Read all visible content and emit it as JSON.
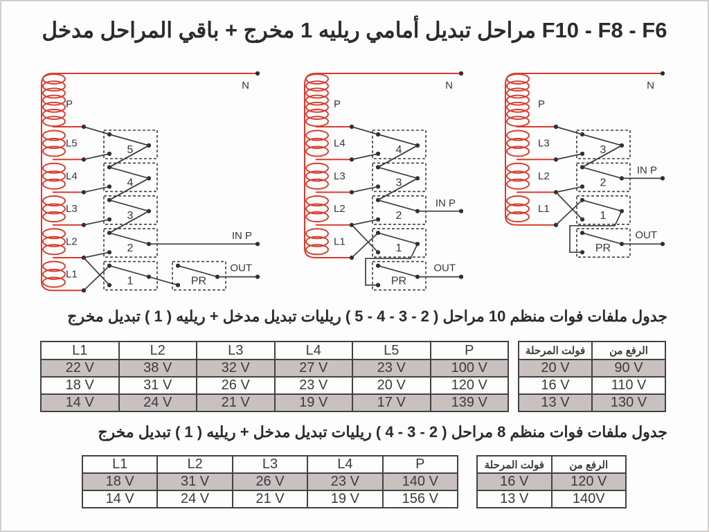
{
  "title": {
    "model": "F10 - F8 - F6",
    "text": "مراحل تبديل أمامي ريليه 1 مخرج + باقي المراحل مدخل"
  },
  "colors": {
    "coil_red": "#da392c",
    "wire": "#3d3d3d",
    "row_shade": "#c9c1bf",
    "table_border": "#424242"
  },
  "circuits": [
    {
      "n_label": "N",
      "coil_label": "P",
      "sections": [
        "L5",
        "L4",
        "L3",
        "L2",
        "L1"
      ],
      "relays": [
        "5",
        "4",
        "3",
        "2",
        "1"
      ],
      "pr_label": "PR",
      "in_label": "IN P",
      "out_label": "OUT"
    },
    {
      "n_label": "N",
      "coil_label": "P",
      "sections": [
        "L4",
        "L3",
        "L2",
        "L1"
      ],
      "relays": [
        "4",
        "3",
        "2",
        "1"
      ],
      "pr_label": "PR",
      "in_label": "IN P",
      "out_label": "OUT"
    },
    {
      "n_label": "N",
      "coil_label": "P",
      "sections": [
        "L3",
        "L2",
        "L1"
      ],
      "relays": [
        "3",
        "2",
        "1"
      ],
      "pr_label": "PR",
      "in_label": "IN P",
      "out_label": "OUT"
    }
  ],
  "table1": {
    "heading": {
      "lead": "جدول ملفات فوات منظم 10 مراحل",
      "range": "( 5 - 4 - 3 - 2 )",
      "mid": "ريليات تبديل مدخل + ريليه",
      "one": "( 1 )",
      "tail": "تبديل مخرج"
    },
    "columns": [
      "L1",
      "L2",
      "L3",
      "L4",
      "L5",
      "P"
    ],
    "rows": [
      [
        "22 V",
        "38 V",
        "32 V",
        "27 V",
        "23 V",
        "100 V"
      ],
      [
        "18 V",
        "31 V",
        "26 V",
        "23 V",
        "20 V",
        "120 V"
      ],
      [
        "14 V",
        "24 V",
        "21 V",
        "19 V",
        "17 V",
        "139 V"
      ]
    ],
    "side_columns": [
      "فولت المرحلة",
      "الرفع من"
    ],
    "side_rows": [
      [
        "20 V",
        "90 V"
      ],
      [
        "16 V",
        "110 V"
      ],
      [
        "13 V",
        "130 V"
      ]
    ]
  },
  "table2": {
    "heading": {
      "lead": "جدول ملفات فوات منظم 8 مراحل",
      "range": "( 4 - 3 - 2 )",
      "mid": "ريليات تبديل مدخل + ريليه",
      "one": "( 1 )",
      "tail": "تبديل مخرج"
    },
    "columns": [
      "L1",
      "L2",
      "L3",
      "L4",
      "P"
    ],
    "rows": [
      [
        "18 V",
        "31 V",
        "26 V",
        "23 V",
        "140 V"
      ],
      [
        "14 V",
        "24 V",
        "21 V",
        "19 V",
        "156 V"
      ]
    ],
    "side_columns": [
      "فولت المرحلة",
      "الرفع من"
    ],
    "side_rows": [
      [
        "16 V",
        "120 V"
      ],
      [
        "13 V",
        "140V"
      ]
    ]
  }
}
